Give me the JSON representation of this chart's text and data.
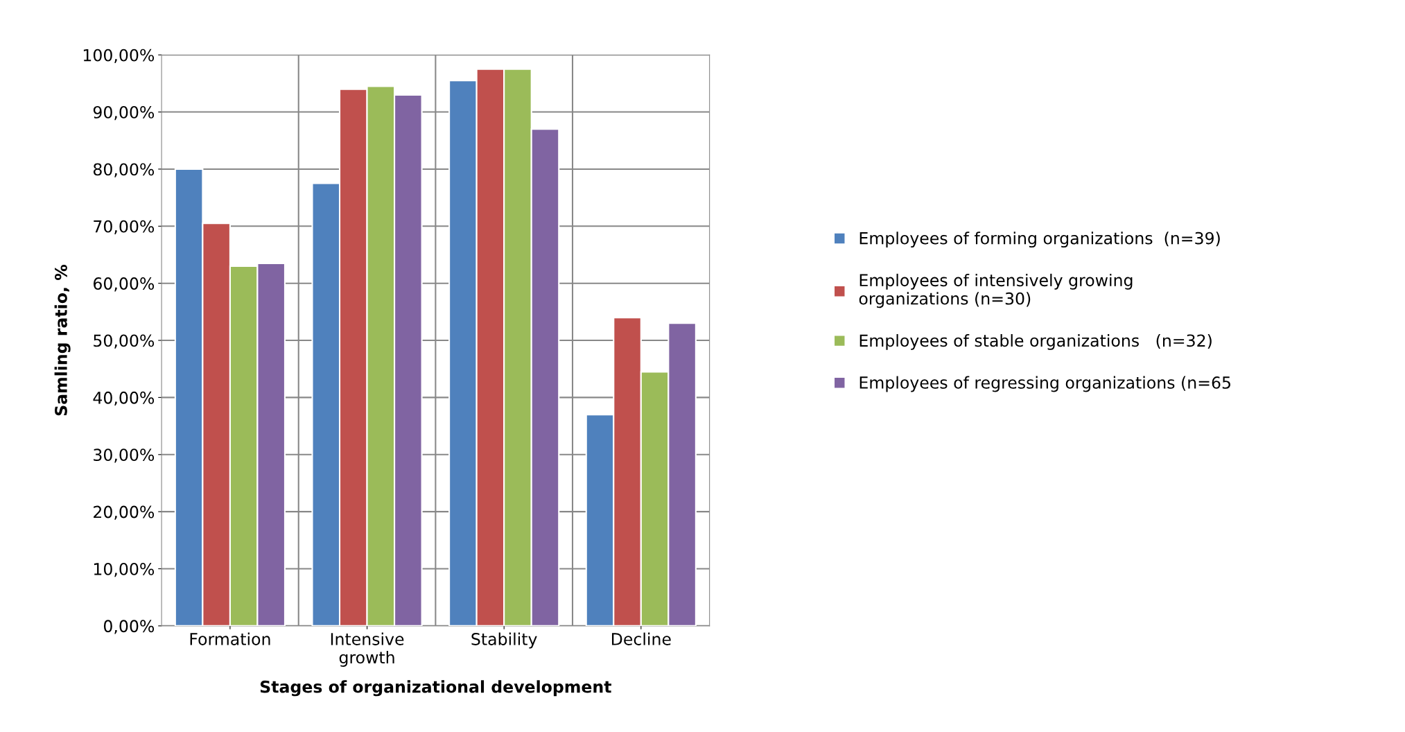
{
  "chart_data": {
    "type": "bar",
    "xlabel": "Stages of organizational development",
    "ylabel": "Samling ratio, %",
    "categories": [
      "Formation",
      "Intensive\ngrowth",
      "Stability",
      "Decline"
    ],
    "series": [
      {
        "name": "Employees of forming organizations  (n=39)",
        "color": "#4f81bd",
        "values": [
          80,
          77.5,
          95.5,
          37
        ]
      },
      {
        "name": "Employees of intensively growing\norganizations (n=30)",
        "color": "#c0504d",
        "values": [
          70.5,
          94,
          97.5,
          54
        ]
      },
      {
        "name": "Employees of stable organizations   (n=32)",
        "color": "#9bbb59",
        "values": [
          63,
          94.5,
          97.5,
          44.5
        ]
      },
      {
        "name": "Employees of regressing organizations (n=65",
        "color": "#8064a2",
        "values": [
          63.5,
          93,
          87,
          53
        ]
      }
    ],
    "ylim": [
      0,
      100
    ],
    "yticks": [
      {
        "value": 0,
        "label": "0,00%"
      },
      {
        "value": 10,
        "label": "10,00%"
      },
      {
        "value": 20,
        "label": "20,00%"
      },
      {
        "value": 30,
        "label": "30,00%"
      },
      {
        "value": 40,
        "label": "40,00%"
      },
      {
        "value": 50,
        "label": "50,00%"
      },
      {
        "value": 60,
        "label": "60,00%"
      },
      {
        "value": 70,
        "label": "70,00%"
      },
      {
        "value": 80,
        "label": "80,00%"
      },
      {
        "value": 90,
        "label": "90,00%"
      },
      {
        "value": 100,
        "label": "100,00%"
      }
    ],
    "grid": "y",
    "legend": "right"
  }
}
